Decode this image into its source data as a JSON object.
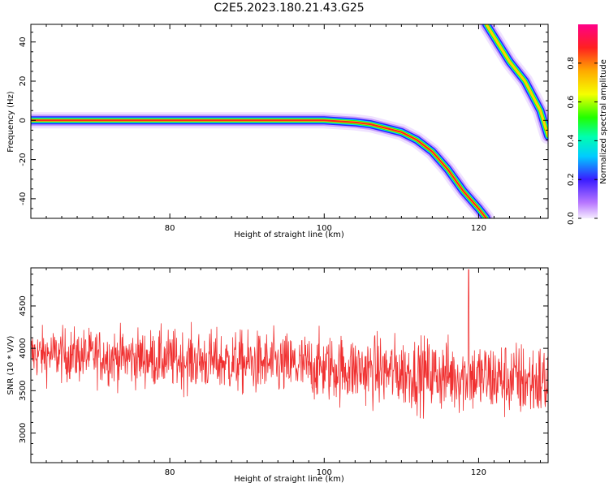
{
  "title": "C2E5.2023.180.21.43.G25",
  "chart_data": [
    {
      "type": "heatmap",
      "xlabel": "Height of straight line (km)",
      "ylabel": "Frequency (Hz)",
      "xlim": [
        62,
        129
      ],
      "ylim": [
        -50,
        49
      ],
      "xticks": [
        80,
        100,
        120
      ],
      "yticks": [
        -40,
        -20,
        0,
        20,
        40
      ],
      "colorbar": {
        "label": "Normalized spectral amplitude",
        "range": [
          0.0,
          1.0
        ],
        "ticks": [
          0.0,
          0.2,
          0.4,
          0.6,
          0.8
        ],
        "colormap": "rainbow (purple to red to magenta)"
      },
      "ridge_primary": {
        "x": [
          62,
          70,
          80,
          90,
          100,
          104,
          106,
          108,
          110,
          112,
          114,
          116,
          118,
          120,
          121
        ],
        "y": [
          0,
          0,
          0,
          0,
          0,
          -1,
          -2,
          -4,
          -6,
          -10,
          -16,
          -25,
          -36,
          -45,
          -50
        ]
      },
      "ridge_secondary": {
        "x": [
          121,
          124,
          126,
          128,
          129
        ],
        "y": [
          49,
          30,
          20,
          5,
          -8
        ]
      }
    },
    {
      "type": "line",
      "xlabel": "Height of straight line (km)",
      "ylabel": "SNR (10 * V/V)",
      "xlim": [
        62,
        129
      ],
      "ylim": [
        2650,
        4950
      ],
      "xticks": [
        80,
        100,
        120
      ],
      "yticks": [
        3000,
        3500,
        4000,
        4500
      ],
      "color": "#f03030",
      "series_summary": {
        "mean_start": 3930,
        "mean_end": 3600,
        "spike_x": 118.7,
        "spike_max": 4930
      }
    }
  ]
}
